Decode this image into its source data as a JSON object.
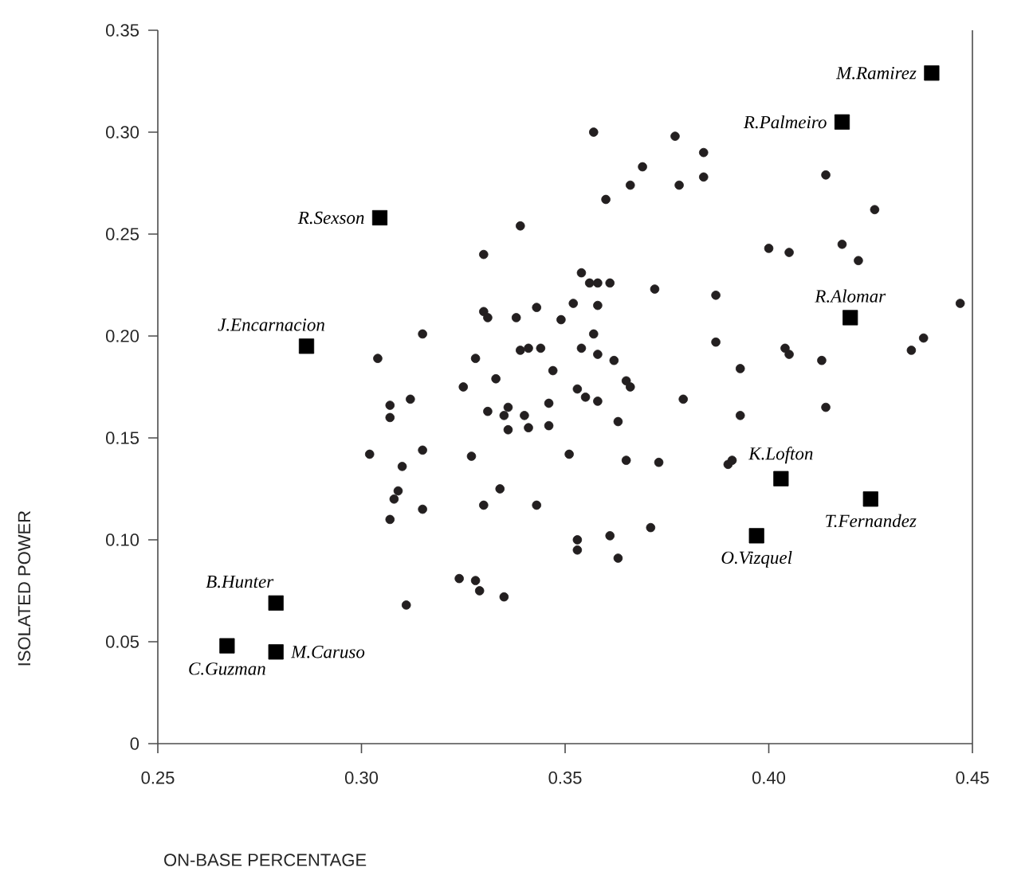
{
  "chart_data": {
    "type": "scatter",
    "xlabel": "ON-BASE PERCENTAGE",
    "ylabel": "ISOLATED POWER",
    "xlim": [
      0.25,
      0.45
    ],
    "ylim": [
      0,
      0.35
    ],
    "xticks": [
      0.25,
      {
        "value": 0.3,
        "label": "0.30"
      },
      0.35,
      {
        "value": 0.4,
        "label": "0.40"
      },
      0.45
    ],
    "yticks": [
      0,
      0.05,
      {
        "value": 0.1,
        "label": "0.10"
      },
      0.15,
      {
        "value": 0.2,
        "label": "0.20"
      },
      0.25,
      {
        "value": 0.3,
        "label": "0.30"
      },
      0.35
    ],
    "series": [
      {
        "marker": "circle",
        "color": "#231f20",
        "x": [
          0.315,
          0.304,
          0.325,
          0.307,
          0.307,
          0.312,
          0.302,
          0.315,
          0.31,
          0.309,
          0.308,
          0.307,
          0.315,
          0.311,
          0.324,
          0.357,
          0.377,
          0.369,
          0.384,
          0.366,
          0.36,
          0.378,
          0.384,
          0.339,
          0.33,
          0.354,
          0.356,
          0.358,
          0.361,
          0.372,
          0.387,
          0.33,
          0.331,
          0.338,
          0.343,
          0.349,
          0.352,
          0.358,
          0.344,
          0.339,
          0.341,
          0.357,
          0.387,
          0.354,
          0.358,
          0.362,
          0.328,
          0.347,
          0.333,
          0.365,
          0.366,
          0.379,
          0.331,
          0.336,
          0.335,
          0.34,
          0.336,
          0.341,
          0.346,
          0.346,
          0.353,
          0.355,
          0.358,
          0.363,
          0.327,
          0.351,
          0.365,
          0.373,
          0.39,
          0.391,
          0.334,
          0.33,
          0.343,
          0.353,
          0.353,
          0.361,
          0.363,
          0.371,
          0.328,
          0.329,
          0.335,
          0.393,
          0.393,
          0.414,
          0.426,
          0.4,
          0.405,
          0.418,
          0.422,
          0.404,
          0.405,
          0.413,
          0.414,
          0.435,
          0.438,
          0.447
        ],
        "values": [
          0.201,
          0.189,
          0.175,
          0.166,
          0.16,
          0.169,
          0.142,
          0.144,
          0.136,
          0.124,
          0.12,
          0.11,
          0.115,
          0.068,
          0.081,
          0.3,
          0.298,
          0.283,
          0.29,
          0.274,
          0.267,
          0.274,
          0.278,
          0.254,
          0.24,
          0.231,
          0.226,
          0.226,
          0.226,
          0.223,
          0.22,
          0.212,
          0.209,
          0.209,
          0.214,
          0.208,
          0.216,
          0.215,
          0.194,
          0.193,
          0.194,
          0.201,
          0.197,
          0.194,
          0.191,
          0.188,
          0.189,
          0.183,
          0.179,
          0.178,
          0.175,
          0.169,
          0.163,
          0.165,
          0.161,
          0.161,
          0.154,
          0.155,
          0.167,
          0.156,
          0.174,
          0.17,
          0.168,
          0.158,
          0.141,
          0.142,
          0.139,
          0.138,
          0.137,
          0.139,
          0.125,
          0.117,
          0.117,
          0.1,
          0.095,
          0.102,
          0.091,
          0.106,
          0.08,
          0.075,
          0.072,
          0.184,
          0.161,
          0.279,
          0.262,
          0.243,
          0.241,
          0.245,
          0.237,
          0.194,
          0.191,
          0.188,
          0.165,
          0.193,
          0.199,
          0.216
        ]
      },
      {
        "marker": "square",
        "color": "#000000",
        "x": [
          0.44,
          0.418,
          0.3045,
          0.2865,
          0.42,
          0.403,
          0.425,
          0.397,
          0.279,
          0.267,
          0.279
        ],
        "values": [
          0.329,
          0.305,
          0.258,
          0.195,
          0.209,
          0.13,
          0.12,
          0.102,
          0.069,
          0.048,
          0.045
        ]
      }
    ],
    "annotations": [
      {
        "text": "M.Ramirez",
        "x": 0.44,
        "y": 0.329
      },
      {
        "text": "R.Palmeiro",
        "x": 0.418,
        "y": 0.305
      },
      {
        "text": "R.Sexson",
        "x": 0.3045,
        "y": 0.258
      },
      {
        "text": "J.Encarnacion",
        "x": 0.2865,
        "y": 0.195
      },
      {
        "text": "R.Alomar",
        "x": 0.42,
        "y": 0.209
      },
      {
        "text": "K.Lofton",
        "x": 0.403,
        "y": 0.13
      },
      {
        "text": "T.Fernandez",
        "x": 0.425,
        "y": 0.12
      },
      {
        "text": "O.Vizquel",
        "x": 0.397,
        "y": 0.102
      },
      {
        "text": "B.Hunter",
        "x": 0.279,
        "y": 0.069
      },
      {
        "text": "C.Guzman",
        "x": 0.267,
        "y": 0.048
      },
      {
        "text": "M.Caruso",
        "x": 0.279,
        "y": 0.045
      }
    ]
  }
}
